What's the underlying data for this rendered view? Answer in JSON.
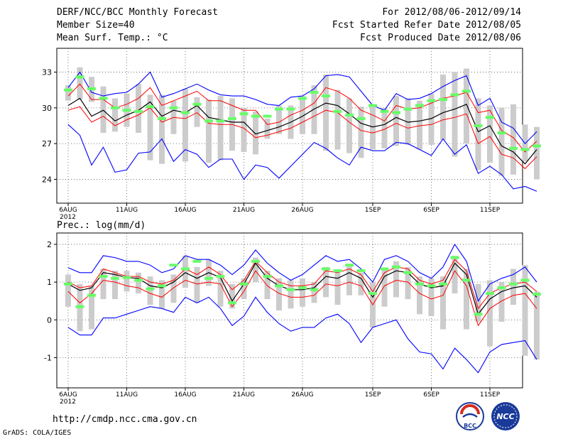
{
  "header": {
    "title": "DERF/NCC/BCC Monthly Forecast",
    "member_size": "Member Size=40",
    "variable": "Mean Surf. Temp.: °C",
    "period": "For 2012/08/06-2012/09/14",
    "start_date": "Fcst Started Refer Date 2012/08/05",
    "produced_date": "Fcst Produced Date 2012/08/06"
  },
  "panel2_label": "Prec.: log(mm/d)",
  "footer": {
    "url": "http://cmdp.ncc.cma.gov.cn",
    "credit": "GrADS: COLA/IGES",
    "logo_bcc": "BCC",
    "logo_ncc": "NCC"
  },
  "colors": {
    "max_min": "#0000ff",
    "spread": "#ff0000",
    "mean": "#000000",
    "obs": "#66ff66",
    "box": "#cccccc"
  },
  "chart_data": [
    {
      "type": "line",
      "title": "Mean Surf. Temp.: °C",
      "x_ticks": [
        {
          "day": 0,
          "label": "6AUG"
        },
        {
          "day": 5,
          "label": "11AUG"
        },
        {
          "day": 10,
          "label": "16AUG"
        },
        {
          "day": 15,
          "label": "21AUG"
        },
        {
          "day": 20,
          "label": "26AUG"
        },
        {
          "day": 26,
          "label": "1SEP"
        },
        {
          "day": 31,
          "label": "6SEP"
        },
        {
          "day": 36,
          "label": "11SEP"
        }
      ],
      "year_label": "2012",
      "ylim": [
        22,
        35
      ],
      "y_ticks": [
        24,
        27,
        30,
        33
      ],
      "grid": true,
      "series": [
        {
          "name": "max",
          "values": [
            31.7,
            33.0,
            31.3,
            31.0,
            31.2,
            31.3,
            32.0,
            33.0,
            30.9,
            31.2,
            31.6,
            32.0,
            31.5,
            31.1,
            31.0,
            31.0,
            30.7,
            30.3,
            30.2,
            30.9,
            31.0,
            31.6,
            32.7,
            32.8,
            32.6,
            31.4,
            30.2,
            29.8,
            31.2,
            30.7,
            30.8,
            31.2,
            31.8,
            32.3,
            32.7,
            30.2,
            30.8,
            28.8,
            28.3,
            27.0,
            28.0
          ]
        },
        {
          "name": "upper",
          "values": [
            31.0,
            32.0,
            30.7,
            30.7,
            30.0,
            30.3,
            30.8,
            31.7,
            30.2,
            30.6,
            31.0,
            31.4,
            30.6,
            30.6,
            30.2,
            29.8,
            29.8,
            28.6,
            28.8,
            29.4,
            29.8,
            30.4,
            31.7,
            31.4,
            30.8,
            29.8,
            29.4,
            28.9,
            30.2,
            29.9,
            30.0,
            30.4,
            30.8,
            31.0,
            31.3,
            29.6,
            29.8,
            28.1,
            27.5,
            26.3,
            27.2
          ]
        },
        {
          "name": "mean",
          "values": [
            30.2,
            30.8,
            29.3,
            29.8,
            28.9,
            29.4,
            29.8,
            30.5,
            29.3,
            29.8,
            29.6,
            30.2,
            29.2,
            29.0,
            28.8,
            28.8,
            27.8,
            28.1,
            28.4,
            28.8,
            29.3,
            29.9,
            30.4,
            30.2,
            29.5,
            28.7,
            28.4,
            28.6,
            29.2,
            28.8,
            28.9,
            29.1,
            29.6,
            29.9,
            30.3,
            28.0,
            28.5,
            26.8,
            26.3,
            25.3,
            26.5
          ]
        },
        {
          "name": "lower",
          "values": [
            29.8,
            30.1,
            28.8,
            29.3,
            28.5,
            29.0,
            29.4,
            30.0,
            28.8,
            29.2,
            29.1,
            29.6,
            28.7,
            28.6,
            28.6,
            28.3,
            27.5,
            27.7,
            28.0,
            28.3,
            28.8,
            29.3,
            29.8,
            29.6,
            28.8,
            28.1,
            27.9,
            28.2,
            28.7,
            28.3,
            28.5,
            28.6,
            29.0,
            29.2,
            29.5,
            27.0,
            27.6,
            26.1,
            25.8,
            24.9,
            25.9
          ]
        },
        {
          "name": "min",
          "values": [
            28.6,
            27.7,
            25.2,
            26.7,
            24.6,
            24.8,
            26.2,
            26.3,
            27.4,
            25.5,
            26.5,
            26.1,
            25.0,
            25.7,
            25.7,
            24.0,
            25.2,
            25.0,
            24.1,
            25.1,
            26.1,
            27.1,
            26.6,
            25.8,
            25.2,
            26.7,
            26.4,
            26.4,
            27.1,
            27.0,
            26.5,
            26.0,
            27.4,
            26.1,
            26.9,
            24.5,
            25.1,
            24.4,
            23.2,
            23.4,
            23.0
          ]
        }
      ],
      "boxes": [
        {
          "upper": 31.9,
          "lower": 30.6
        },
        {
          "upper": 33.4,
          "lower": 30.7
        },
        {
          "upper": 32.6,
          "lower": 30.5
        },
        {
          "upper": 31.8,
          "lower": 27.9
        },
        {
          "upper": 30.8,
          "lower": 28.0
        },
        {
          "upper": 31.2,
          "lower": 28.4
        },
        {
          "upper": 32.0,
          "lower": 27.9
        },
        {
          "upper": 31.1,
          "lower": 25.6
        },
        {
          "upper": 31.1,
          "lower": 25.3
        },
        {
          "upper": 30.6,
          "lower": 27.8
        },
        {
          "upper": 31.6,
          "lower": 25.5
        },
        {
          "upper": 30.9,
          "lower": 28.4
        },
        {
          "upper": 30.7,
          "lower": 25.4
        },
        {
          "upper": 31.0,
          "lower": 25.6
        },
        {
          "upper": 30.8,
          "lower": 26.4
        },
        {
          "upper": 30.0,
          "lower": 26.3
        },
        {
          "upper": 29.7,
          "lower": 26.1
        },
        {
          "upper": 29.1,
          "lower": 27.4
        },
        {
          "upper": 30.2,
          "lower": 27.8
        },
        {
          "upper": 30.2,
          "lower": 27.4
        },
        {
          "upper": 31.0,
          "lower": 27.8
        },
        {
          "upper": 31.9,
          "lower": 27.8
        },
        {
          "upper": 32.8,
          "lower": 26.4
        },
        {
          "upper": 31.5,
          "lower": 26.5
        },
        {
          "upper": 30.8,
          "lower": 26.2
        },
        {
          "upper": 30.1,
          "lower": 25.8
        },
        {
          "upper": 30.2,
          "lower": 26.5
        },
        {
          "upper": 30.0,
          "lower": 26.6
        },
        {
          "upper": 31.0,
          "lower": 26.8
        },
        {
          "upper": 30.8,
          "lower": 26.9
        },
        {
          "upper": 30.6,
          "lower": 26.5
        },
        {
          "upper": 31.2,
          "lower": 26.9
        },
        {
          "upper": 32.8,
          "lower": 27.3
        },
        {
          "upper": 33.0,
          "lower": 25.9
        },
        {
          "upper": 33.3,
          "lower": 27.0
        },
        {
          "upper": 30.8,
          "lower": 24.8
        },
        {
          "upper": 30.2,
          "lower": 25.4
        },
        {
          "upper": 30.0,
          "lower": 24.3
        },
        {
          "upper": 30.3,
          "lower": 24.4
        },
        {
          "upper": 28.6,
          "lower": 25.5
        },
        {
          "upper": 28.4,
          "lower": 24.0
        }
      ],
      "observed": [
        31.5,
        32.6,
        31.6,
        30.8,
        30.0,
        29.8,
        29.7,
        30.1,
        29.1,
        30.0,
        29.6,
        30.3,
        28.9,
        28.9,
        29.1,
        29.5,
        29.3,
        29.3,
        29.9,
        29.9,
        30.8,
        31.3,
        31.0,
        29.7,
        29.4,
        29.1,
        30.2,
        29.7,
        29.6,
        29.9,
        30.2,
        30.6,
        30.7,
        31.1,
        31.4,
        28.5,
        29.2,
        27.9,
        26.6,
        26.5,
        26.8
      ]
    },
    {
      "type": "line",
      "title": "Prec.: log(mm/d)",
      "x_ticks": [
        {
          "day": 0,
          "label": "6AUG"
        },
        {
          "day": 5,
          "label": "11AUG"
        },
        {
          "day": 10,
          "label": "16AUG"
        },
        {
          "day": 15,
          "label": "21AUG"
        },
        {
          "day": 20,
          "label": "26AUG"
        },
        {
          "day": 26,
          "label": "1SEP"
        },
        {
          "day": 31,
          "label": "6SEP"
        },
        {
          "day": 36,
          "label": "11SEP"
        }
      ],
      "year_label": "2012",
      "ylim": [
        -1.8,
        2.3
      ],
      "y_ticks": [
        -1,
        0,
        1,
        2
      ],
      "grid": true,
      "series": [
        {
          "name": "max",
          "values": [
            1.38,
            1.25,
            1.25,
            1.7,
            1.65,
            1.55,
            1.55,
            1.45,
            1.25,
            1.35,
            1.7,
            1.6,
            1.6,
            1.45,
            1.2,
            1.45,
            1.85,
            1.5,
            1.25,
            1.05,
            1.2,
            1.45,
            1.7,
            1.55,
            1.6,
            1.35,
            1.0,
            1.6,
            1.7,
            1.55,
            1.25,
            1.1,
            1.4,
            2.0,
            1.55,
            0.5,
            0.95,
            1.1,
            1.2,
            1.4,
            1.0
          ]
        },
        {
          "name": "upper",
          "values": [
            1.0,
            0.85,
            0.9,
            1.35,
            1.25,
            1.15,
            1.15,
            1.0,
            0.95,
            1.05,
            1.35,
            1.2,
            1.4,
            1.2,
            0.8,
            1.05,
            1.55,
            1.25,
            1.0,
            0.9,
            0.9,
            0.95,
            1.3,
            1.25,
            1.35,
            1.2,
            0.75,
            1.25,
            1.4,
            1.35,
            1.05,
            0.95,
            1.05,
            1.6,
            1.3,
            0.3,
            0.7,
            0.85,
            0.95,
            1.0,
            0.75
          ]
        },
        {
          "name": "mean",
          "values": [
            0.95,
            0.78,
            0.85,
            1.25,
            1.2,
            1.12,
            1.1,
            0.9,
            0.85,
            1.0,
            1.25,
            1.1,
            1.25,
            1.12,
            0.5,
            0.95,
            1.5,
            1.1,
            0.9,
            0.8,
            0.8,
            0.85,
            1.15,
            1.1,
            1.25,
            1.1,
            0.6,
            1.15,
            1.3,
            1.25,
            0.95,
            0.85,
            0.9,
            1.5,
            1.2,
            0.15,
            0.55,
            0.75,
            0.85,
            0.9,
            0.6
          ]
        },
        {
          "name": "lower",
          "values": [
            0.75,
            0.45,
            0.7,
            1.05,
            1.0,
            0.9,
            0.85,
            0.7,
            0.6,
            0.85,
            1.05,
            0.95,
            1.0,
            0.95,
            0.35,
            0.75,
            1.3,
            0.9,
            0.7,
            0.6,
            0.6,
            0.65,
            0.95,
            0.9,
            1.0,
            0.9,
            0.4,
            0.9,
            1.05,
            1.0,
            0.7,
            0.55,
            0.65,
            1.3,
            0.9,
            -0.15,
            0.3,
            0.5,
            0.65,
            0.7,
            0.3
          ]
        },
        {
          "name": "min",
          "values": [
            -0.2,
            -0.4,
            -0.4,
            0.05,
            0.05,
            0.15,
            0.25,
            0.35,
            0.3,
            0.2,
            0.6,
            0.45,
            0.6,
            0.3,
            -0.15,
            0.1,
            0.6,
            0.2,
            -0.1,
            -0.3,
            -0.2,
            -0.2,
            0.05,
            0.15,
            -0.1,
            -0.6,
            -0.2,
            -0.1,
            0.0,
            -0.5,
            -0.85,
            -0.9,
            -1.3,
            -0.75,
            -1.05,
            -1.4,
            -0.85,
            -0.65,
            -0.6,
            -0.55,
            -1.05
          ]
        }
      ],
      "boxes": [
        {
          "upper": 1.2,
          "lower": 0.35
        },
        {
          "upper": 0.95,
          "lower": -0.3
        },
        {
          "upper": 0.9,
          "lower": -0.25
        },
        {
          "upper": 1.35,
          "lower": 0.55
        },
        {
          "upper": 1.3,
          "lower": 0.55
        },
        {
          "upper": 1.3,
          "lower": 0.75
        },
        {
          "upper": 1.25,
          "lower": 0.7
        },
        {
          "upper": 1.15,
          "lower": 0.4
        },
        {
          "upper": 1.05,
          "lower": 0.3
        },
        {
          "upper": 1.2,
          "lower": 0.45
        },
        {
          "upper": 1.7,
          "lower": 0.85
        },
        {
          "upper": 1.4,
          "lower": 0.45
        },
        {
          "upper": 1.6,
          "lower": 0.9
        },
        {
          "upper": 1.3,
          "lower": 0.35
        },
        {
          "upper": 0.95,
          "lower": 0.3
        },
        {
          "upper": 1.1,
          "lower": 0.55
        },
        {
          "upper": 1.65,
          "lower": 1.0
        },
        {
          "upper": 1.3,
          "lower": 0.55
        },
        {
          "upper": 1.1,
          "lower": 0.25
        },
        {
          "upper": 1.05,
          "lower": 0.3
        },
        {
          "upper": 1.1,
          "lower": 0.35
        },
        {
          "upper": 1.0,
          "lower": 0.45
        },
        {
          "upper": 1.4,
          "lower": 0.6
        },
        {
          "upper": 1.3,
          "lower": 0.4
        },
        {
          "upper": 1.45,
          "lower": 0.65
        },
        {
          "upper": 1.25,
          "lower": 0.65
        },
        {
          "upper": 1.0,
          "lower": -0.2
        },
        {
          "upper": 1.35,
          "lower": 0.35
        },
        {
          "upper": 1.55,
          "lower": 0.6
        },
        {
          "upper": 1.4,
          "lower": 0.55
        },
        {
          "upper": 1.15,
          "lower": 0.15
        },
        {
          "upper": 1.1,
          "lower": 0.1
        },
        {
          "upper": 1.15,
          "lower": -0.25
        },
        {
          "upper": 1.7,
          "lower": 0.7
        },
        {
          "upper": 1.35,
          "lower": -0.25
        },
        {
          "upper": 0.95,
          "lower": -0.05
        },
        {
          "upper": 1.05,
          "lower": -0.7
        },
        {
          "upper": 1.0,
          "lower": -0.05
        },
        {
          "upper": 1.35,
          "lower": 0.4
        },
        {
          "upper": 1.45,
          "lower": -0.95
        },
        {
          "upper": 0.75,
          "lower": -1.05
        }
      ],
      "observed": [
        0.95,
        0.35,
        0.65,
        1.15,
        1.1,
        1.12,
        1.05,
        0.82,
        0.9,
        1.45,
        1.35,
        1.55,
        1.1,
        1.15,
        0.45,
        0.95,
        1.55,
        1.15,
        0.9,
        0.8,
        0.85,
        0.8,
        1.35,
        1.3,
        1.45,
        1.3,
        0.7,
        1.35,
        1.4,
        1.25,
        0.95,
        0.9,
        0.95,
        1.65,
        1.05,
        0.15,
        0.7,
        0.85,
        0.95,
        1.05,
        0.68
      ]
    }
  ]
}
